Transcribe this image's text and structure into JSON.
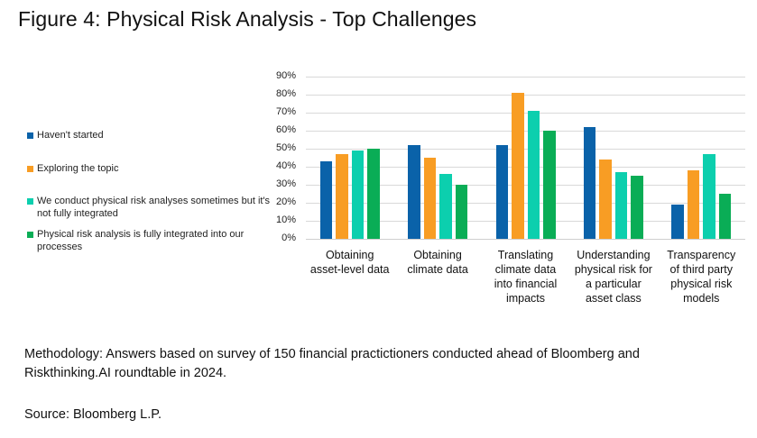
{
  "title": "Figure 4: Physical Risk Analysis - Top Challenges",
  "legend": [
    {
      "label": "Haven't started",
      "color": "#0a62a9"
    },
    {
      "label": "Exploring the topic",
      "color": "#f89d24"
    },
    {
      "label": "We conduct physical risk analyses sometimes but it's not fully integrated",
      "color": "#0ccfae"
    },
    {
      "label": "Physical risk analysis is fully integrated into our processes",
      "color": "#0aad56"
    }
  ],
  "footer": {
    "methodology_line1": "Methodology: Answers based on survey of 150 financial practictioners conducted ahead of Bloomberg and",
    "methodology_line2": "Riskthinking.AI roundtable in 2024.",
    "source": "Source: Bloomberg L.P."
  },
  "chart_data": {
    "type": "bar",
    "title": "Figure 4: Physical Risk Analysis - Top Challenges",
    "xlabel": "",
    "ylabel": "",
    "ylim": [
      0,
      90
    ],
    "yticks": [
      "0%",
      "10%",
      "20%",
      "30%",
      "40%",
      "50%",
      "60%",
      "70%",
      "80%",
      "90%"
    ],
    "grid": true,
    "legend_position": "left",
    "categories": [
      [
        "Obtaining",
        "asset-level data"
      ],
      [
        "Obtaining",
        "climate data"
      ],
      [
        "Translating",
        "climate data",
        "into financial",
        "impacts"
      ],
      [
        "Understanding",
        "physical risk for",
        "a particular",
        "asset class"
      ],
      [
        "Transparency",
        "of third party",
        "physical risk",
        "models"
      ]
    ],
    "series": [
      {
        "name": "Haven't started",
        "color": "#0a62a9",
        "values": [
          43,
          52,
          52,
          62,
          19
        ]
      },
      {
        "name": "Exploring the topic",
        "color": "#f89d24",
        "values": [
          47,
          45,
          81,
          44,
          38
        ]
      },
      {
        "name": "We conduct physical risk analyses sometimes but it's not fully integrated",
        "color": "#0ccfae",
        "values": [
          49,
          36,
          71,
          37,
          47
        ]
      },
      {
        "name": "Physical risk analysis is fully integrated into our processes",
        "color": "#0aad56",
        "values": [
          50,
          30,
          60,
          35,
          25
        ]
      }
    ]
  }
}
